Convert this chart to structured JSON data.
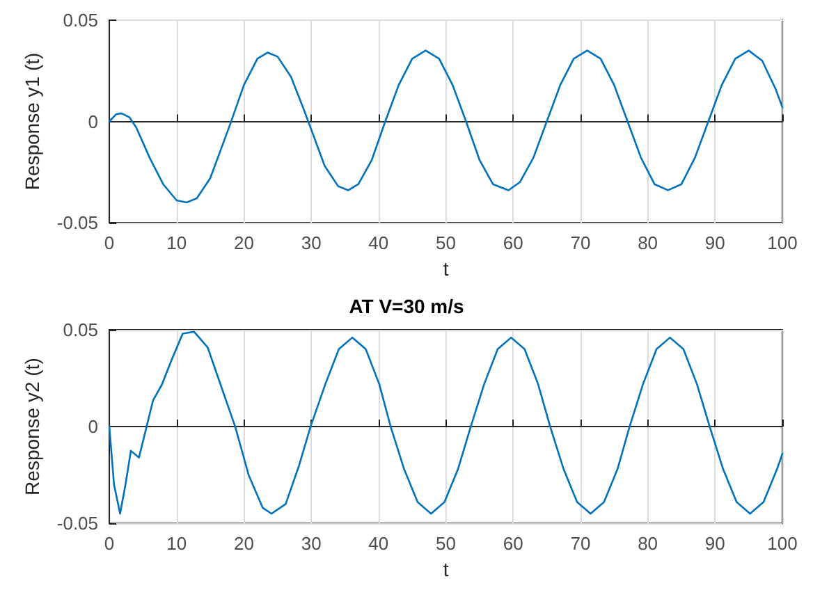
{
  "chart_data": [
    {
      "type": "line",
      "xlabel": "t",
      "ylabel": "Response y1 (t)",
      "xlim": [
        0,
        100
      ],
      "ylim": [
        -0.05,
        0.05
      ],
      "xticks": [
        0,
        10,
        20,
        30,
        40,
        50,
        60,
        70,
        80,
        90,
        100
      ],
      "yticks": [
        -0.05,
        0,
        0.05
      ],
      "grid": true,
      "marker": "none",
      "x": [
        0,
        1,
        1.8,
        3,
        4,
        6,
        8,
        10,
        11.5,
        13,
        15,
        17,
        18,
        20,
        22,
        23.5,
        25,
        27,
        29,
        30,
        32,
        34,
        35.5,
        37,
        39,
        41,
        43,
        45,
        47,
        49,
        51,
        53,
        55,
        57,
        59.3,
        61,
        63,
        65,
        67,
        69,
        71,
        73,
        75,
        77,
        79,
        81,
        83,
        85,
        87,
        89,
        91,
        93,
        95,
        97,
        99,
        100
      ],
      "series": [
        {
          "color": "#0072bd",
          "values": [
            0,
            0.0035,
            0.004,
            0.002,
            -0.003,
            -0.018,
            -0.031,
            -0.039,
            -0.04,
            -0.038,
            -0.028,
            -0.01,
            -0.001,
            0.018,
            0.031,
            0.034,
            0.032,
            0.022,
            0.005,
            -0.004,
            -0.022,
            -0.032,
            -0.034,
            -0.031,
            -0.019,
            0,
            0.018,
            0.031,
            0.035,
            0.031,
            0.018,
            0,
            -0.019,
            -0.031,
            -0.034,
            -0.03,
            -0.018,
            0,
            0.018,
            0.031,
            0.035,
            0.031,
            0.018,
            0,
            -0.018,
            -0.031,
            -0.034,
            -0.031,
            -0.018,
            0,
            0.018,
            0.031,
            0.035,
            0.03,
            0.016,
            0.007
          ]
        }
      ]
    },
    {
      "type": "line",
      "title": "AT V=30 m/s",
      "xlabel": "t",
      "ylabel": "Response y2 (t)",
      "xlim": [
        0,
        100
      ],
      "ylim": [
        -0.05,
        0.05
      ],
      "xticks": [
        0,
        10,
        20,
        30,
        40,
        50,
        60,
        70,
        80,
        90,
        100
      ],
      "yticks": [
        -0.05,
        0,
        0.05
      ],
      "grid": true,
      "marker": "none",
      "x": [
        0,
        0.7,
        1.6,
        2.4,
        3.2,
        4.4,
        5.4,
        6.5,
        7.8,
        9.2,
        10.9,
        12.6,
        14.6,
        16.7,
        18.7,
        20.7,
        22.8,
        24.1,
        26.2,
        28.2,
        29.9,
        32.1,
        34.1,
        36.1,
        38.1,
        40.1,
        41.8,
        43.8,
        45.8,
        47.8,
        49.8,
        51.8,
        53.7,
        55.7,
        57.7,
        59.7,
        61.7,
        63.7,
        65.5,
        67.5,
        69.5,
        71.5,
        73.5,
        75.5,
        77.3,
        79.3,
        81.3,
        83.3,
        85.3,
        87.3,
        89.2,
        91.2,
        93.2,
        95.2,
        97.2,
        99.2,
        100
      ],
      "series": [
        {
          "color": "#0072bd",
          "values": [
            0,
            -0.03,
            -0.045,
            -0.03,
            -0.0125,
            -0.016,
            -0.002,
            0.0136,
            0.0216,
            0.034,
            0.048,
            0.049,
            0.041,
            0.02,
            0,
            -0.025,
            -0.042,
            -0.045,
            -0.04,
            -0.02,
            0,
            0.022,
            0.04,
            0.046,
            0.04,
            0.022,
            0,
            -0.022,
            -0.039,
            -0.045,
            -0.039,
            -0.022,
            0,
            0.022,
            0.04,
            0.046,
            0.04,
            0.022,
            0,
            -0.022,
            -0.039,
            -0.045,
            -0.039,
            -0.022,
            0,
            0.022,
            0.04,
            0.046,
            0.04,
            0.022,
            0,
            -0.022,
            -0.039,
            -0.045,
            -0.039,
            -0.022,
            -0.014
          ]
        }
      ]
    }
  ]
}
